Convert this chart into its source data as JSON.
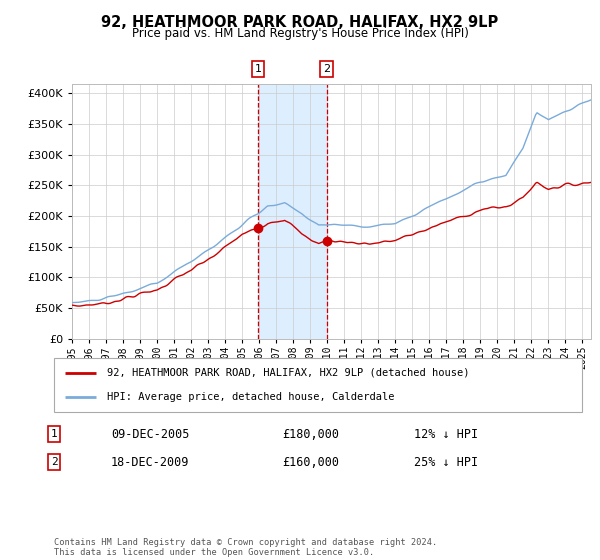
{
  "title": "92, HEATHMOOR PARK ROAD, HALIFAX, HX2 9LP",
  "subtitle": "Price paid vs. HM Land Registry's House Price Index (HPI)",
  "yticks": [
    0,
    50000,
    100000,
    150000,
    200000,
    250000,
    300000,
    350000,
    400000
  ],
  "ylim": [
    0,
    415000
  ],
  "xlim_start": 1995.0,
  "xlim_end": 2025.5,
  "sale1_year": 2005.94,
  "sale1_price": 180000,
  "sale1_label": "1",
  "sale1_date": "09-DEC-2005",
  "sale1_hpi_diff": "12% ↓ HPI",
  "sale2_year": 2009.96,
  "sale2_price": 160000,
  "sale2_label": "2",
  "sale2_date": "18-DEC-2009",
  "sale2_hpi_diff": "25% ↓ HPI",
  "hpi_color": "#7aabda",
  "price_color": "#cc0000",
  "marker_color": "#cc0000",
  "shade_color": "#ddeeff",
  "vline_color": "#cc0000",
  "legend_label_price": "92, HEATHMOOR PARK ROAD, HALIFAX, HX2 9LP (detached house)",
  "legend_label_hpi": "HPI: Average price, detached house, Calderdale",
  "footer": "Contains HM Land Registry data © Crown copyright and database right 2024.\nThis data is licensed under the Open Government Licence v3.0.",
  "background_color": "#ffffff",
  "plot_bg_color": "#ffffff",
  "grid_color": "#cccccc"
}
